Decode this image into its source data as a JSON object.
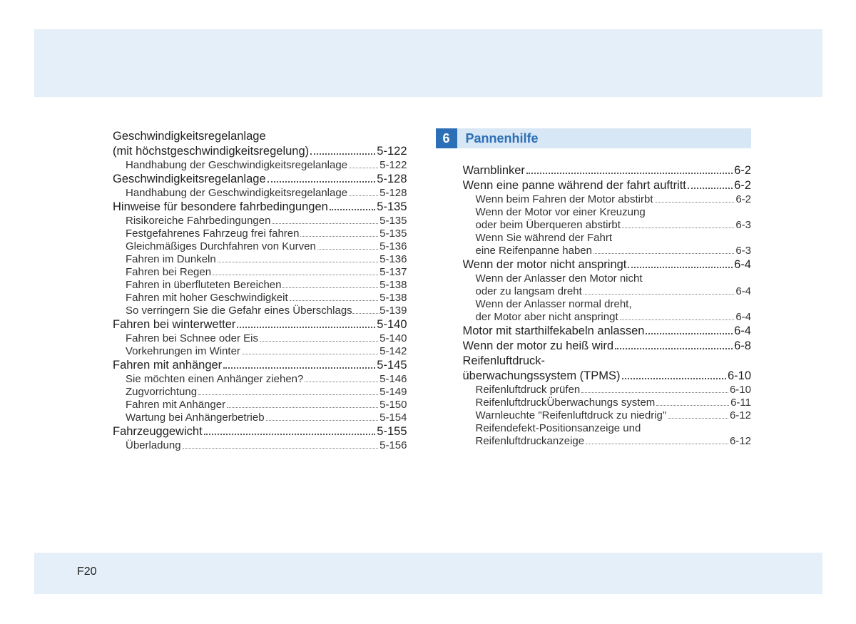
{
  "page_number": "F20",
  "colors": {
    "header_bg": "#e4eff9",
    "section_num_bg": "#2b6fb6",
    "section_title_bg": "#d7e7f5",
    "section_title_color": "#2b6fb6",
    "text": "#222222",
    "leader": "#555555"
  },
  "left_column": {
    "entries": [
      {
        "level": 1,
        "label": "Geschwindigkeitsregelanlage",
        "wrap": true
      },
      {
        "level": 1,
        "label": "(mit höchstgeschwindigkeitsregelung)",
        "page": "5-122"
      },
      {
        "level": 2,
        "label": "Handhabung der Geschwindigkeitsregelanlage",
        "page": "5-122"
      },
      {
        "level": 1,
        "label": "Geschwindigkeitsregelanlage",
        "page": "5-128"
      },
      {
        "level": 2,
        "label": "Handhabung der Geschwindigkeitsregelanlage",
        "page": "5-128"
      },
      {
        "level": 1,
        "label": "Hinweise für besondere fahrbedingungen",
        "page": "5-135"
      },
      {
        "level": 2,
        "label": "Risikoreiche Fahrbedingungen",
        "page": "5-135"
      },
      {
        "level": 2,
        "label": "Festgefahrenes Fahrzeug frei fahren",
        "page": "5-135"
      },
      {
        "level": 2,
        "label": "Gleichmäßiges Durchfahren von Kurven",
        "page": "5-136"
      },
      {
        "level": 2,
        "label": "Fahren im Dunkeln",
        "page": "5-136"
      },
      {
        "level": 2,
        "label": "Fahren bei Regen",
        "page": "5-137"
      },
      {
        "level": 2,
        "label": "Fahren in überfluteten Bereichen",
        "page": "5-138"
      },
      {
        "level": 2,
        "label": "Fahren mit hoher Geschwindigkeit",
        "page": "5-138"
      },
      {
        "level": 2,
        "label": "So verringern Sie die Gefahr eines Überschlags",
        "page": "5-139",
        "tight": true
      },
      {
        "level": 1,
        "label": "Fahren bei winterwetter",
        "page": "5-140"
      },
      {
        "level": 2,
        "label": "Fahren bei Schnee oder Eis",
        "page": "5-140"
      },
      {
        "level": 2,
        "label": "Vorkehrungen im Winter",
        "page": "5-142"
      },
      {
        "level": 1,
        "label": "Fahren mit anhänger",
        "page": "5-145"
      },
      {
        "level": 2,
        "label": "Sie möchten einen Anhänger ziehen?",
        "page": "5-146"
      },
      {
        "level": 2,
        "label": "Zugvorrichtung",
        "page": "5-149"
      },
      {
        "level": 2,
        "label": "Fahren mit Anhänger",
        "page": "5-150"
      },
      {
        "level": 2,
        "label": "Wartung bei Anhängerbetrieb",
        "page": "5-154"
      },
      {
        "level": 1,
        "label": "Fahrzeuggewicht",
        "page": "5-155"
      },
      {
        "level": 2,
        "label": "Überladung",
        "page": "5-156"
      }
    ]
  },
  "right_column": {
    "section": {
      "number": "6",
      "title": "Pannenhilfe"
    },
    "entries": [
      {
        "level": 1,
        "label": "Warnblinker",
        "page": "6-2"
      },
      {
        "level": 1,
        "label": "Wenn eine panne während der fahrt auftritt",
        "page": "6-2"
      },
      {
        "level": 2,
        "label": "Wenn beim Fahren der Motor abstirbt",
        "page": "6-2"
      },
      {
        "level": 2,
        "label": "Wenn der Motor vor einer Kreuzung",
        "wrap": true
      },
      {
        "level": 2,
        "label": "oder beim Überqueren abstirbt",
        "page": "6-3"
      },
      {
        "level": 2,
        "label": "Wenn Sie während der Fahrt",
        "wrap": true
      },
      {
        "level": 2,
        "label": "eine Reifenpanne haben",
        "page": "6-3"
      },
      {
        "level": 1,
        "label": "Wenn der motor nicht anspringt",
        "page": "6-4"
      },
      {
        "level": 2,
        "label": "Wenn der Anlasser den Motor nicht",
        "wrap": true
      },
      {
        "level": 2,
        "label": "oder zu langsam dreht",
        "page": "6-4"
      },
      {
        "level": 2,
        "label": "Wenn der Anlasser normal dreht,",
        "wrap": true
      },
      {
        "level": 2,
        "label": "der Motor aber nicht anspringt",
        "page": "6-4"
      },
      {
        "level": 1,
        "label": "Motor mit starthilfekabeln anlassen",
        "page": "6-4"
      },
      {
        "level": 1,
        "label": "Wenn der motor zu heiß wird",
        "page": "6-8"
      },
      {
        "level": 1,
        "label": "Reifenluftdruck-",
        "wrap": true
      },
      {
        "level": 1,
        "label": "überwachungssystem (TPMS)",
        "page": "6-10"
      },
      {
        "level": 2,
        "label": "Reifenluftdruck prüfen",
        "page": "6-10"
      },
      {
        "level": 2,
        "label": "ReifenluftdruckÜberwachungs system",
        "page": "6-11"
      },
      {
        "level": 2,
        "label": "Warnleuchte \"Reifenluftdruck zu niedrig\"",
        "page": "6-12"
      },
      {
        "level": 2,
        "label": "Reifendefekt-Positionsanzeige und",
        "wrap": true
      },
      {
        "level": 2,
        "label": "Reifenluftdruckanzeige",
        "page": "6-12"
      }
    ]
  }
}
